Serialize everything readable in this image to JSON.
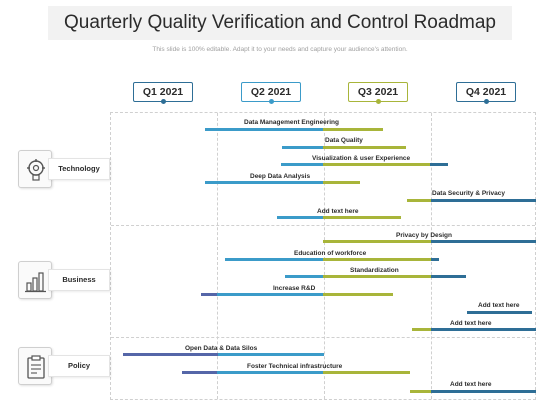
{
  "header": {
    "title": "Quarterly Quality Verification and Control Roadmap",
    "subtitle": "This slide is 100% editable. Adapt it to your needs and capture your audience's attention."
  },
  "quarters": [
    {
      "label": "Q1 2021",
      "color": "#2e6e96"
    },
    {
      "label": "Q2 2021",
      "color": "#3b9bc9"
    },
    {
      "label": "Q3 2021",
      "color": "#a8b53a"
    },
    {
      "label": "Q4 2021",
      "color": "#2e6e96"
    }
  ],
  "categories": [
    {
      "label": "Technology",
      "icon": "brain-gear-icon"
    },
    {
      "label": "Business",
      "icon": "bar-chart-icon"
    },
    {
      "label": "Policy",
      "icon": "clipboard-icon"
    }
  ],
  "tasks": [
    {
      "label": "Data Management Engineering"
    },
    {
      "label": "Data Quality"
    },
    {
      "label": "Visualization & user Experience"
    },
    {
      "label": "Deep Data Analysis"
    },
    {
      "label": "Data Security & Privacy"
    },
    {
      "label": "Add text here"
    },
    {
      "label": "Privacy by Design"
    },
    {
      "label": "Education of workforce"
    },
    {
      "label": "Standardization"
    },
    {
      "label": "Increase R&D"
    },
    {
      "label": "Add text here"
    },
    {
      "label": "Add text here"
    },
    {
      "label": "Open Data & Data Silos"
    },
    {
      "label": "Foster Technical infrastructure"
    },
    {
      "label": "Add text here"
    }
  ],
  "colors": {
    "blue": "#3b9bc9",
    "olive": "#a8b53a",
    "navy": "#2e6e96",
    "indigo": "#5566a8"
  }
}
